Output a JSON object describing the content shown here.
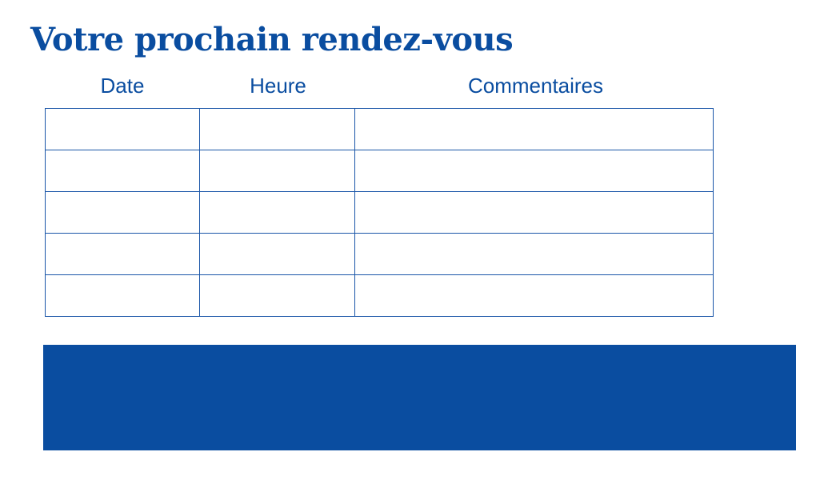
{
  "title": "Votre prochain rendez-vous",
  "table": {
    "headers": [
      "Date",
      "Heure",
      "Commentaires"
    ],
    "rows": [
      {
        "date": "",
        "heure": "",
        "commentaires": ""
      },
      {
        "date": "",
        "heure": "",
        "commentaires": ""
      },
      {
        "date": "",
        "heure": "",
        "commentaires": ""
      },
      {
        "date": "",
        "heure": "",
        "commentaires": ""
      },
      {
        "date": "",
        "heure": "",
        "commentaires": ""
      }
    ]
  },
  "colors": {
    "brand_blue": "#0a4da0"
  }
}
